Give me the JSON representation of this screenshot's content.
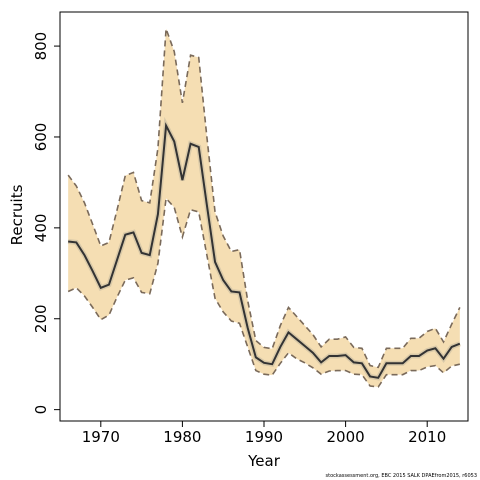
{
  "chart_data": {
    "type": "line",
    "xlabel": "Year",
    "ylabel": "Recruits",
    "xlim": [
      1965,
      2015
    ],
    "ylim": [
      -25,
      875
    ],
    "x_ticks": [
      1970,
      1980,
      1990,
      2000,
      2010
    ],
    "y_ticks": [
      0,
      200,
      400,
      600,
      800
    ],
    "footnote": "stockassessment.org, EBC 2015 SALK DPAEfrom2015, r6053",
    "colors": {
      "band_fill": "#f5deb3",
      "bound_line": "#7a6a5a",
      "median_line": "#333333"
    },
    "x": [
      1966,
      1967,
      1968,
      1969,
      1970,
      1971,
      1972,
      1973,
      1974,
      1975,
      1976,
      1977,
      1978,
      1979,
      1980,
      1981,
      1982,
      1983,
      1984,
      1985,
      1986,
      1987,
      1988,
      1989,
      1990,
      1991,
      1992,
      1993,
      1994,
      1995,
      1996,
      1997,
      1998,
      1999,
      2000,
      2001,
      2002,
      2003,
      2004,
      2005,
      2006,
      2007,
      2008,
      2009,
      2010,
      2011,
      2012,
      2013,
      2014
    ],
    "series": [
      {
        "role": "median",
        "values": [
          370,
          368,
          340,
          305,
          268,
          275,
          330,
          385,
          390,
          345,
          340,
          430,
          625,
          590,
          505,
          585,
          578,
          450,
          325,
          285,
          260,
          258,
          180,
          115,
          103,
          100,
          138,
          170,
          155,
          140,
          125,
          104,
          118,
          118,
          120,
          104,
          102,
          73,
          70,
          102,
          102,
          102,
          118,
          118,
          130,
          135,
          112,
          138,
          145
        ]
      },
      {
        "role": "lower",
        "values": [
          260,
          268,
          250,
          225,
          198,
          208,
          248,
          285,
          290,
          258,
          255,
          322,
          465,
          445,
          380,
          440,
          435,
          340,
          245,
          215,
          195,
          190,
          138,
          86,
          78,
          76,
          102,
          125,
          112,
          103,
          92,
          78,
          85,
          86,
          86,
          78,
          77,
          52,
          50,
          77,
          77,
          77,
          86,
          86,
          94,
          97,
          81,
          96,
          100
        ]
      },
      {
        "role": "upper",
        "values": [
          516,
          492,
          455,
          408,
          360,
          368,
          440,
          515,
          522,
          460,
          455,
          575,
          838,
          788,
          675,
          780,
          775,
          600,
          435,
          382,
          348,
          352,
          240,
          152,
          137,
          134,
          185,
          225,
          205,
          185,
          165,
          138,
          155,
          155,
          160,
          137,
          135,
          97,
          93,
          135,
          135,
          135,
          157,
          157,
          172,
          179,
          149,
          188,
          225
        ]
      }
    ]
  }
}
